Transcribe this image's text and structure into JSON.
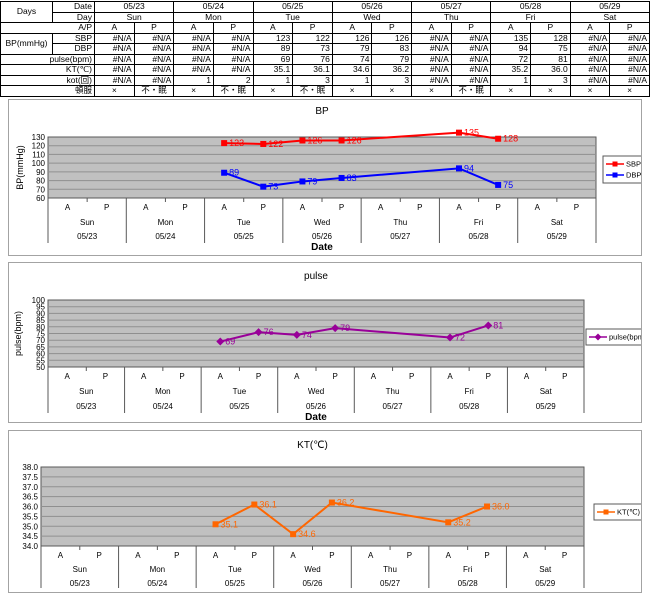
{
  "table": {
    "corner": "Days",
    "header_labels": {
      "date": "Date",
      "day": "Day",
      "ap": "A/P"
    },
    "dates": [
      "05/23",
      "05/24",
      "05/25",
      "05/26",
      "05/27",
      "05/28",
      "05/29"
    ],
    "days": [
      "Sun",
      "Mon",
      "Tue",
      "Wed",
      "Thu",
      "Fri",
      "Sat"
    ],
    "ap_labels": [
      "A",
      "P"
    ],
    "data_rows": [
      {
        "key": "sbp",
        "group": "BP(mmHg)",
        "label": "SBP",
        "align": "right",
        "values": [
          "#N/A",
          "#N/A",
          "#N/A",
          "#N/A",
          "123",
          "122",
          "126",
          "126",
          "#N/A",
          "#N/A",
          "135",
          "128",
          "#N/A",
          "#N/A"
        ]
      },
      {
        "key": "dbp",
        "label": "DBP",
        "align": "right",
        "values": [
          "#N/A",
          "#N/A",
          "#N/A",
          "#N/A",
          "89",
          "73",
          "79",
          "83",
          "#N/A",
          "#N/A",
          "94",
          "75",
          "#N/A",
          "#N/A"
        ]
      },
      {
        "key": "pulse",
        "label": "pulse(bpm)",
        "align": "right",
        "values": [
          "#N/A",
          "#N/A",
          "#N/A",
          "#N/A",
          "69",
          "76",
          "74",
          "79",
          "#N/A",
          "#N/A",
          "72",
          "81",
          "#N/A",
          "#N/A"
        ]
      },
      {
        "key": "kt",
        "label": "KT(℃)",
        "align": "right",
        "values": [
          "#N/A",
          "#N/A",
          "#N/A",
          "#N/A",
          "35.1",
          "36.1",
          "34.6",
          "36.2",
          "#N/A",
          "#N/A",
          "35.2",
          "36.0",
          "#N/A",
          "#N/A"
        ]
      },
      {
        "key": "kot",
        "label": "kot(回)",
        "align": "right",
        "values": [
          "#N/A",
          "#N/A",
          "1",
          "2",
          "1",
          "3",
          "1",
          "3",
          "#N/A",
          "#N/A",
          "1",
          "3",
          "#N/A",
          "#N/A"
        ]
      },
      {
        "key": "tonpuku",
        "label": "頓服",
        "align": "center",
        "values": [
          "×",
          "不・眠",
          "×",
          "不・眠",
          "×",
          "不・眠",
          "×",
          "×",
          "×",
          "不・眠",
          "×",
          "×",
          "×",
          "×"
        ]
      }
    ]
  },
  "chart_data": [
    {
      "type": "line",
      "title": "BP",
      "ylabel": "BP(mmHg)",
      "xlabel": "Date",
      "ylim": [
        60,
        130
      ],
      "ytick_step": 10,
      "ytick_decimals": 0,
      "grid": true,
      "plot_bg": "#c0c0c0",
      "legend_position": "right",
      "data_labels": true,
      "x": {
        "ap": [
          "A",
          "P"
        ],
        "days": [
          "Sun",
          "Mon",
          "Tue",
          "Wed",
          "Thu",
          "Fri",
          "Sat"
        ],
        "dates": [
          "05/23",
          "05/24",
          "05/25",
          "05/26",
          "05/27",
          "05/28",
          "05/29"
        ]
      },
      "series": [
        {
          "name": "SBP",
          "color": "#ff0000",
          "marker": "square",
          "values": [
            null,
            null,
            null,
            null,
            123,
            122,
            126,
            126,
            null,
            null,
            135,
            128,
            null,
            null
          ]
        },
        {
          "name": "DBP",
          "color": "#0000ff",
          "marker": "square",
          "values": [
            null,
            null,
            null,
            null,
            89,
            73,
            79,
            83,
            null,
            null,
            94,
            75,
            null,
            null
          ]
        }
      ]
    },
    {
      "type": "line",
      "title": "pulse",
      "ylabel": "pulse(bpm)",
      "xlabel": "Date",
      "ylim": [
        50,
        100
      ],
      "ytick_step": 5,
      "ytick_decimals": 0,
      "grid": true,
      "plot_bg": "#c0c0c0",
      "legend_position": "right",
      "data_labels": true,
      "x": {
        "ap": [
          "A",
          "P"
        ],
        "days": [
          "Sun",
          "Mon",
          "Tue",
          "Wed",
          "Thu",
          "Fri",
          "Sat"
        ],
        "dates": [
          "05/23",
          "05/24",
          "05/25",
          "05/26",
          "05/27",
          "05/28",
          "05/29"
        ]
      },
      "series": [
        {
          "name": "pulse(bpm)",
          "color": "#990099",
          "marker": "diamond",
          "values": [
            null,
            null,
            null,
            null,
            69,
            76,
            74,
            79,
            null,
            null,
            72,
            81,
            null,
            null
          ]
        }
      ]
    },
    {
      "type": "line",
      "title": "KT(℃)",
      "ylabel": "",
      "xlabel": "",
      "ylim": [
        34,
        38
      ],
      "ytick_step": 0.5,
      "ytick_decimals": 1,
      "grid": true,
      "plot_bg": "#c0c0c0",
      "legend_position": "right",
      "data_labels": true,
      "x": {
        "ap": [
          "A",
          "P"
        ],
        "days": [
          "Sun",
          "Mon",
          "Tue",
          "Wed",
          "Thu",
          "Fri",
          "Sat"
        ],
        "dates": [
          "05/23",
          "05/24",
          "05/25",
          "05/26",
          "05/27",
          "05/28",
          "05/29"
        ]
      },
      "series": [
        {
          "name": "KT(℃)",
          "color": "#ff6600",
          "marker": "square",
          "values": [
            null,
            null,
            null,
            null,
            35.1,
            36.1,
            34.6,
            36.2,
            null,
            null,
            35.2,
            36.0,
            null,
            null
          ]
        }
      ]
    }
  ]
}
